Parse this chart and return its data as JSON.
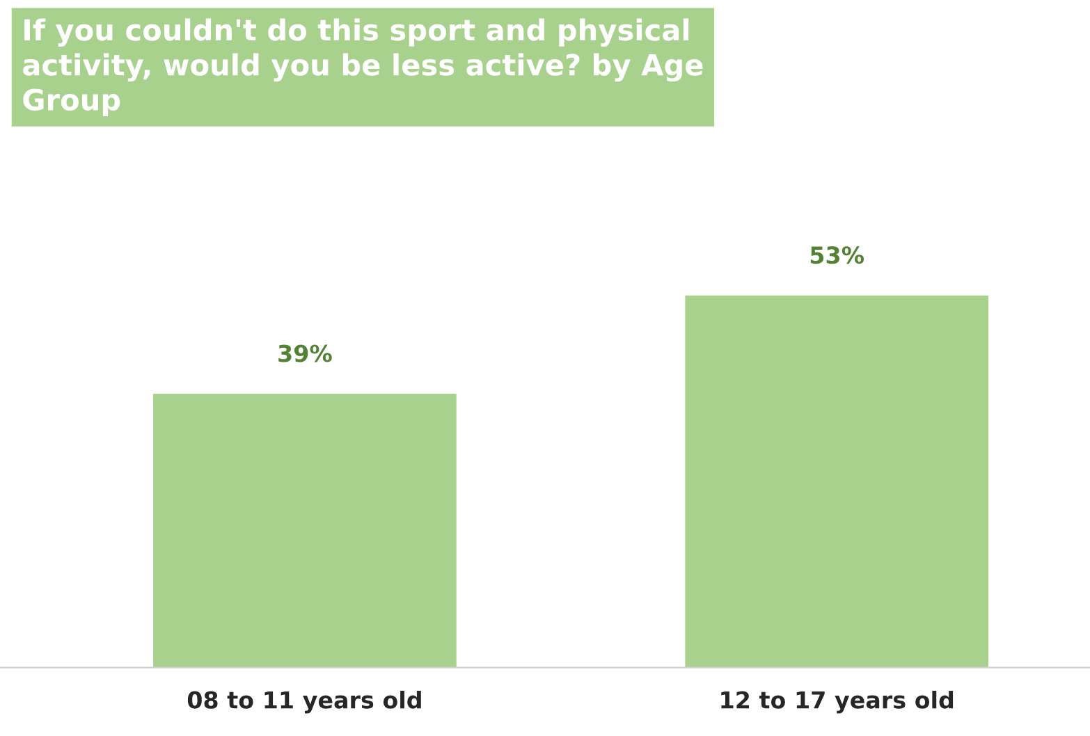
{
  "chart_data": {
    "type": "bar",
    "title": "If you couldn't do this sport and physical\nactivity, would you be less active? by Age\nGroup",
    "categories": [
      "08 to 11 years old",
      "12 to 17 years old"
    ],
    "values": [
      39,
      53
    ],
    "value_labels": [
      "39%",
      "53%"
    ],
    "color": "#a9d18e",
    "grid": false,
    "legend": false
  }
}
